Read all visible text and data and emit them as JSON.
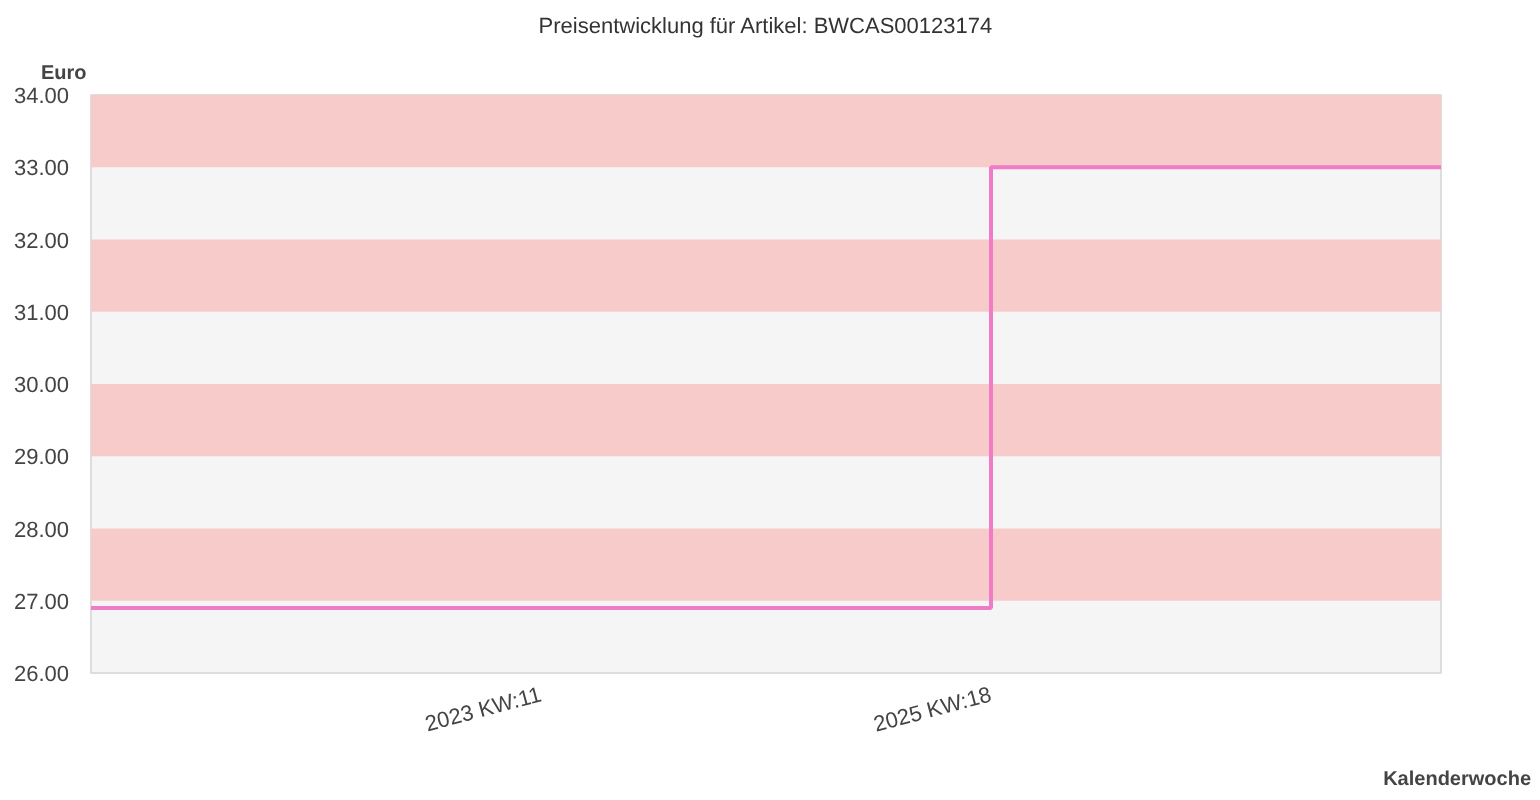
{
  "chart_data": {
    "type": "step",
    "title": "Preisentwicklung für Artikel: BWCAS00123174",
    "ylabel": "Euro",
    "xlabel": "Kalenderwoche",
    "categories": [
      null,
      "2023 KW:11",
      "2025 KW:18",
      null
    ],
    "series": [
      {
        "color": "#f07cc8",
        "values": [
          26.9,
          26.9,
          33.0,
          33.0
        ]
      }
    ],
    "ylim": [
      26,
      34
    ],
    "yticks": [
      {
        "value": 26,
        "label": "26.00"
      },
      {
        "value": 27,
        "label": "27.00"
      },
      {
        "value": 28,
        "label": "28.00"
      },
      {
        "value": 29,
        "label": "29.00"
      },
      {
        "value": 30,
        "label": "30.00"
      },
      {
        "value": 31,
        "label": "31.00"
      },
      {
        "value": 32,
        "label": "32.00"
      },
      {
        "value": 33,
        "label": "33.00"
      },
      {
        "value": 34,
        "label": "34.00"
      }
    ],
    "bands": [
      {
        "axis": "y",
        "from": 27,
        "to": 28,
        "color": "#f8cbcb"
      },
      {
        "axis": "y",
        "from": 29,
        "to": 30,
        "color": "#f8cbcb"
      },
      {
        "axis": "y",
        "from": 31,
        "to": 32,
        "color": "#f8cbcb"
      },
      {
        "axis": "y",
        "from": 33,
        "to": 34,
        "color": "#f8cbcb"
      }
    ],
    "marker": "none",
    "line_style": "solid"
  }
}
